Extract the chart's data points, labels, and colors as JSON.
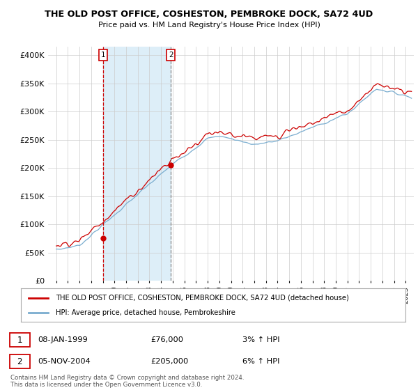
{
  "title": "THE OLD POST OFFICE, COSHESTON, PEMBROKE DOCK, SA72 4UD",
  "subtitle": "Price paid vs. HM Land Registry's House Price Index (HPI)",
  "legend_line1": "THE OLD POST OFFICE, COSHESTON, PEMBROKE DOCK, SA72 4UD (detached house)",
  "legend_line2": "HPI: Average price, detached house, Pembrokeshire",
  "annotation1_label": "1",
  "annotation1_date": "08-JAN-1999",
  "annotation1_price": "£76,000",
  "annotation1_hpi": "3% ↑ HPI",
  "annotation1_year": 1999.03,
  "annotation1_value": 76000,
  "annotation2_label": "2",
  "annotation2_date": "05-NOV-2004",
  "annotation2_price": "£205,000",
  "annotation2_hpi": "6% ↑ HPI",
  "annotation2_year": 2004.84,
  "annotation2_value": 205000,
  "yticks": [
    0,
    50000,
    100000,
    150000,
    200000,
    250000,
    300000,
    350000,
    400000
  ],
  "ylim": [
    0,
    415000
  ],
  "xlim_left": 1994.3,
  "xlim_right": 2025.7,
  "copyright": "Contains HM Land Registry data © Crown copyright and database right 2024.\nThis data is licensed under the Open Government Licence v3.0.",
  "line_color_red": "#cc0000",
  "line_color_blue": "#7aadcf",
  "shade_color": "#ddeef8",
  "grid_color": "#cccccc",
  "background_color": "#ffffff"
}
